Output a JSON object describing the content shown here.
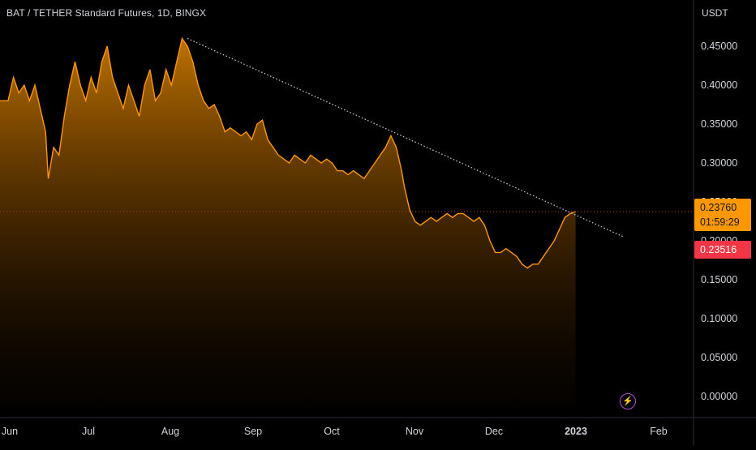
{
  "header": {
    "title": "BAT / TETHER Standard Futures, 1D, BINGX",
    "currency": "USDT"
  },
  "price_tags": {
    "last_price": "0.23760",
    "countdown": "01:59:29",
    "previous_close": "0.23516"
  },
  "colors": {
    "background": "#000000",
    "line": "#ff9800",
    "trendline": "#d1d4dc",
    "last_price_tag": "#ff9800",
    "prev_price_tag": "#f23645",
    "axis_text": "#d1d4dc"
  },
  "icons": {
    "replay": "lightning-icon"
  },
  "chart_data": {
    "type": "area",
    "title": "BAT / TETHER Standard Futures, 1D, BINGX",
    "ylabel": "USDT",
    "ylim": [
      0,
      0.46
    ],
    "y_ticks": [
      "0.45000",
      "0.40000",
      "0.35000",
      "0.30000",
      "0.25000",
      "0.20000",
      "0.15000",
      "0.10000",
      "0.05000",
      "0.00000"
    ],
    "x_ticks": [
      "Jun",
      "Jul",
      "Aug",
      "Sep",
      "Oct",
      "Nov",
      "Dec",
      "2023",
      "Feb"
    ],
    "x_tick_days": [
      0,
      30,
      61,
      92,
      122,
      153,
      183,
      214,
      245
    ],
    "x_range": [
      0,
      255
    ],
    "x_note": "days counted from Jun 1, 2022",
    "grid": false,
    "series": [
      {
        "values": [
          [
            0,
            0.38
          ],
          [
            2,
            0.41
          ],
          [
            4,
            0.39
          ],
          [
            6,
            0.4
          ],
          [
            8,
            0.38
          ],
          [
            10,
            0.4
          ],
          [
            12,
            0.37
          ],
          [
            14,
            0.34
          ],
          [
            15,
            0.28
          ],
          [
            17,
            0.32
          ],
          [
            19,
            0.31
          ],
          [
            21,
            0.36
          ],
          [
            23,
            0.4
          ],
          [
            25,
            0.43
          ],
          [
            27,
            0.4
          ],
          [
            29,
            0.38
          ],
          [
            31,
            0.41
          ],
          [
            33,
            0.39
          ],
          [
            35,
            0.43
          ],
          [
            37,
            0.45
          ],
          [
            39,
            0.41
          ],
          [
            41,
            0.39
          ],
          [
            43,
            0.37
          ],
          [
            45,
            0.4
          ],
          [
            47,
            0.38
          ],
          [
            49,
            0.36
          ],
          [
            51,
            0.4
          ],
          [
            53,
            0.42
          ],
          [
            55,
            0.38
          ],
          [
            57,
            0.39
          ],
          [
            59,
            0.42
          ],
          [
            61,
            0.4
          ],
          [
            63,
            0.43
          ],
          [
            65,
            0.46
          ],
          [
            67,
            0.45
          ],
          [
            69,
            0.43
          ],
          [
            71,
            0.4
          ],
          [
            73,
            0.38
          ],
          [
            75,
            0.37
          ],
          [
            77,
            0.375
          ],
          [
            79,
            0.36
          ],
          [
            81,
            0.34
          ],
          [
            83,
            0.345
          ],
          [
            85,
            0.34
          ],
          [
            87,
            0.335
          ],
          [
            89,
            0.34
          ],
          [
            91,
            0.33
          ],
          [
            93,
            0.35
          ],
          [
            95,
            0.355
          ],
          [
            97,
            0.33
          ],
          [
            99,
            0.32
          ],
          [
            101,
            0.31
          ],
          [
            103,
            0.305
          ],
          [
            105,
            0.3
          ],
          [
            107,
            0.31
          ],
          [
            109,
            0.305
          ],
          [
            111,
            0.3
          ],
          [
            113,
            0.31
          ],
          [
            115,
            0.305
          ],
          [
            117,
            0.3
          ],
          [
            119,
            0.305
          ],
          [
            121,
            0.3
          ],
          [
            123,
            0.29
          ],
          [
            125,
            0.29
          ],
          [
            127,
            0.285
          ],
          [
            129,
            0.29
          ],
          [
            131,
            0.285
          ],
          [
            133,
            0.28
          ],
          [
            135,
            0.29
          ],
          [
            137,
            0.3
          ],
          [
            139,
            0.31
          ],
          [
            141,
            0.32
          ],
          [
            143,
            0.335
          ],
          [
            145,
            0.32
          ],
          [
            147,
            0.29
          ],
          [
            148,
            0.27
          ],
          [
            150,
            0.24
          ],
          [
            152,
            0.225
          ],
          [
            154,
            0.22
          ],
          [
            156,
            0.225
          ],
          [
            158,
            0.23
          ],
          [
            160,
            0.225
          ],
          [
            162,
            0.23
          ],
          [
            164,
            0.235
          ],
          [
            166,
            0.23
          ],
          [
            168,
            0.235
          ],
          [
            170,
            0.235
          ],
          [
            172,
            0.23
          ],
          [
            174,
            0.225
          ],
          [
            176,
            0.23
          ],
          [
            178,
            0.22
          ],
          [
            180,
            0.2
          ],
          [
            182,
            0.185
          ],
          [
            184,
            0.185
          ],
          [
            186,
            0.19
          ],
          [
            188,
            0.185
          ],
          [
            190,
            0.18
          ],
          [
            192,
            0.17
          ],
          [
            194,
            0.165
          ],
          [
            196,
            0.17
          ],
          [
            198,
            0.17
          ],
          [
            200,
            0.18
          ],
          [
            202,
            0.19
          ],
          [
            204,
            0.2
          ],
          [
            206,
            0.215
          ],
          [
            208,
            0.23
          ],
          [
            210,
            0.235
          ],
          [
            212,
            0.2376
          ]
        ]
      }
    ],
    "trendline": {
      "from": [
        67,
        0.46
      ],
      "to": [
        230,
        0.205
      ]
    },
    "last_price_line": 0.2376
  }
}
